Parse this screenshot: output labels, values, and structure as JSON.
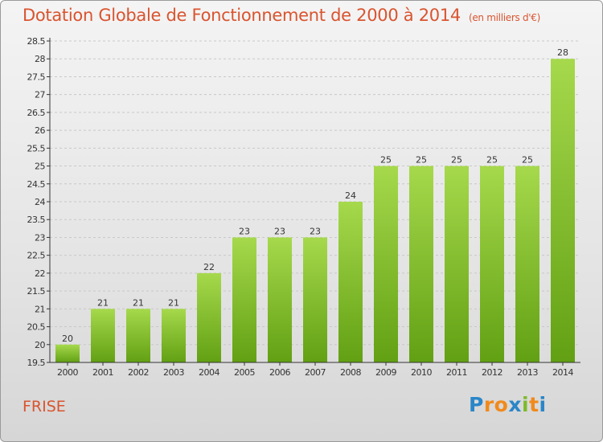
{
  "header": {
    "title": "Dotation Globale de Fonctionnement de 2000 à 2014",
    "subtitle": "(en milliers d'€)"
  },
  "commune": "FRISE",
  "logo": {
    "text": "Proxiti",
    "letters": [
      "P",
      "r",
      "o",
      "x",
      "i",
      "t",
      "i"
    ],
    "colors": [
      "#2a86c8",
      "#f08a1c",
      "#f08a1c",
      "#2a86c8",
      "#7dbb2a",
      "#f08a1c",
      "#2a86c8"
    ]
  },
  "colors": {
    "accent": "#d9542f",
    "bar_light": "#a6d94c",
    "bar_dark": "#62a013",
    "axis": "#333333",
    "grid": "#c8c8c8"
  },
  "chart_data": {
    "type": "bar",
    "title": "Dotation Globale de Fonctionnement de 2000 à 2014",
    "subtitle": "(en milliers d'€)",
    "categories": [
      "2000",
      "2001",
      "2002",
      "2003",
      "2004",
      "2005",
      "2006",
      "2007",
      "2008",
      "2009",
      "2010",
      "2011",
      "2012",
      "2013",
      "2014"
    ],
    "values": [
      20,
      21,
      21,
      21,
      22,
      23,
      23,
      23,
      24,
      25,
      25,
      25,
      25,
      25,
      28
    ],
    "data_labels": [
      "20",
      "21",
      "21",
      "21",
      "22",
      "23",
      "23",
      "23",
      "24",
      "25",
      "25",
      "25",
      "25",
      "25",
      "28"
    ],
    "ylim": [
      19.5,
      28.5
    ],
    "yticks": [
      "19.5",
      "20",
      "20.5",
      "21",
      "21.5",
      "22",
      "22.5",
      "23",
      "23.5",
      "24",
      "24.5",
      "25",
      "25.5",
      "26",
      "26.5",
      "27",
      "27.5",
      "28",
      "28.5"
    ],
    "xlabel": "",
    "ylabel": "",
    "grid": true
  }
}
